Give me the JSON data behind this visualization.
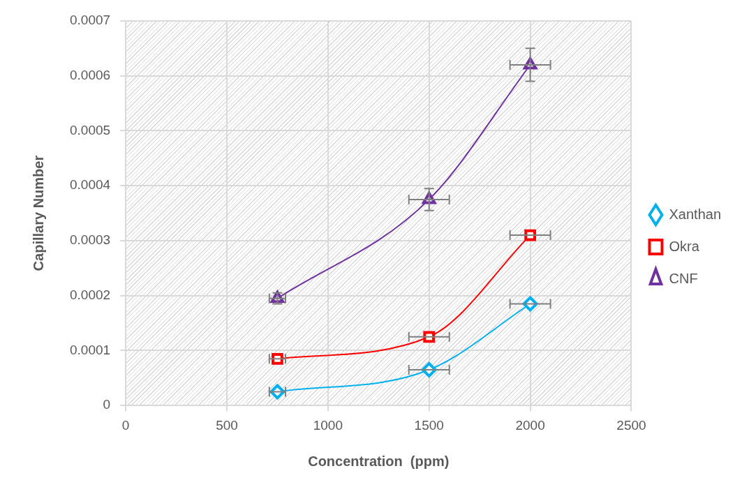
{
  "chart_data": {
    "type": "line",
    "xlabel": "Concentration  (ppm)",
    "ylabel": "Capillary Number",
    "xlim": [
      0,
      2500
    ],
    "xticks": [
      0,
      500,
      1000,
      1500,
      2000,
      2500
    ],
    "ylim": [
      0,
      0.0007
    ],
    "yticks": [
      0,
      0.0001,
      0.0002,
      0.0003,
      0.0004,
      0.0005,
      0.0006,
      0.0007
    ],
    "grid": true,
    "legend": "right",
    "series": [
      {
        "name": "Xanthan",
        "color": "#00b0f0",
        "marker": "diamond",
        "x": [
          750,
          1500,
          2000
        ],
        "values": [
          2.5e-05,
          6.5e-05,
          0.000185
        ],
        "xerrors": [
          40,
          100,
          100
        ]
      },
      {
        "name": "Okra",
        "color": "#ff0000",
        "marker": "square",
        "x": [
          750,
          1500,
          2000
        ],
        "values": [
          8.5e-05,
          0.000125,
          0.00031
        ],
        "xerrors": [
          40,
          100,
          100
        ]
      },
      {
        "name": "CNF",
        "color": "#7030a0",
        "marker": "triangle",
        "x": [
          750,
          1500,
          2000
        ],
        "values": [
          0.000195,
          0.000375,
          0.00062
        ],
        "xerrors": [
          40,
          100,
          100
        ],
        "errors": [
          1e-05,
          2e-05,
          3e-05
        ]
      }
    ]
  }
}
